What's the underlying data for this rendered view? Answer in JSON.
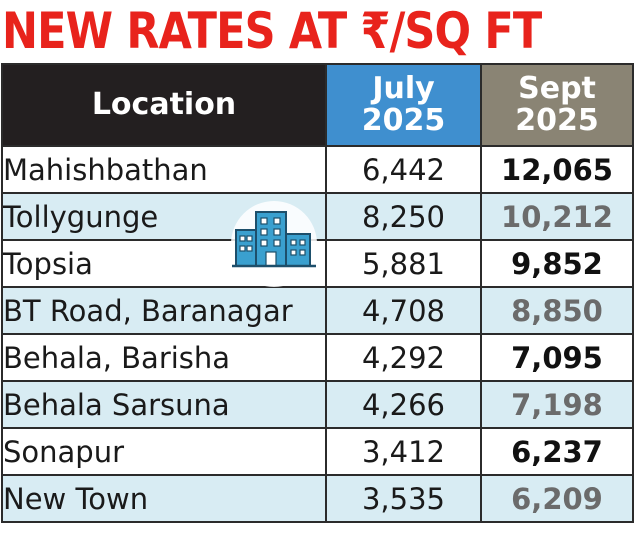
{
  "title": "NEW RATES AT ₹/SQ FT",
  "chart_data": {
    "type": "table",
    "title": "NEW RATES AT ₹/SQ FT",
    "columns": [
      "Location",
      "July 2025",
      "Sept 2025"
    ],
    "header": {
      "location": "Location",
      "july_line1": "July",
      "july_line2": "2025",
      "sept_line1": "Sept",
      "sept_line2": "2025"
    },
    "rows": [
      {
        "location": "Mahishbathan",
        "july": "6,442",
        "sept": "12,065"
      },
      {
        "location": "Tollygunge",
        "july": "8,250",
        "sept": "10,212"
      },
      {
        "location": "Topsia",
        "july": "5,881",
        "sept": "9,852"
      },
      {
        "location": "BT Road, Baranagar",
        "july": "4,708",
        "sept": "8,850"
      },
      {
        "location": "Behala, Barisha",
        "july": "4,292",
        "sept": "7,095"
      },
      {
        "location": "Behala Sarsuna",
        "july": "4,266",
        "sept": "7,198"
      },
      {
        "location": "Sonapur",
        "july": "3,412",
        "sept": "6,237"
      },
      {
        "location": "New Town",
        "july": "3,535",
        "sept": "6,209"
      }
    ]
  },
  "colors": {
    "title": "#e8231c",
    "header_location_bg": "#231f20",
    "header_july_bg": "#3f8fcf",
    "header_sept_bg": "#8a8474",
    "row_alt_bg": "#d8ecf3",
    "icon_blue": "#3aa0cf"
  },
  "icons": {
    "building": "building-icon"
  }
}
